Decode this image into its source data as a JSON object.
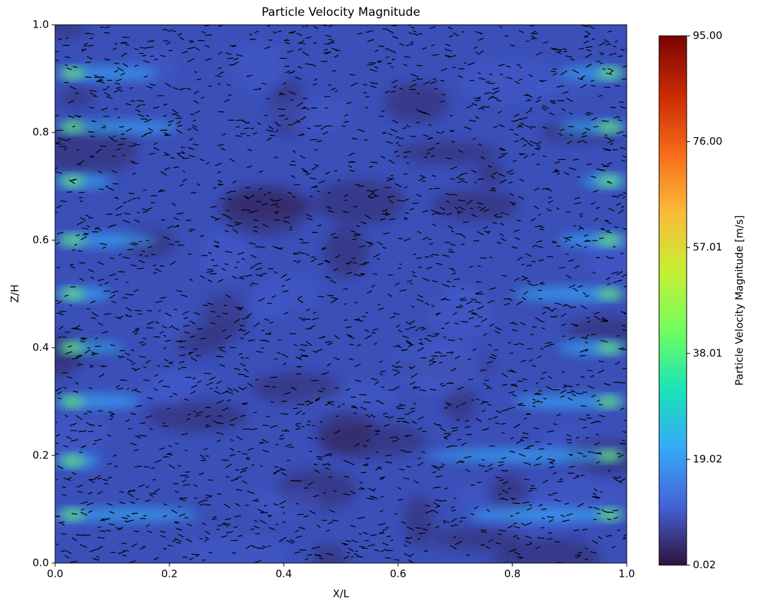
{
  "chart_data": {
    "type": "contour",
    "title": "Particle Velocity Magnitude",
    "xlabel": "X/L",
    "ylabel": "Z/H",
    "xlim": [
      0,
      1
    ],
    "ylim": [
      0,
      1
    ],
    "xticks": [
      {
        "value": 0,
        "label": "0.0"
      },
      0.2,
      0.4,
      0.6,
      0.8,
      {
        "value": 1,
        "label": "1.0"
      }
    ],
    "yticks": [
      {
        "value": 0,
        "label": "0.0"
      },
      0.2,
      0.4,
      0.6,
      0.8,
      {
        "value": 1,
        "label": "1.0"
      }
    ],
    "colorbar": {
      "label": "Particle Velocity Magnitude [m/s]",
      "clim": [
        0.02,
        95
      ],
      "ticks": [
        0.02,
        19.02,
        38.01,
        57.01,
        {
          "value": 76,
          "label": "76.00"
        },
        {
          "value": 95,
          "label": "95.00"
        }
      ],
      "colors": [
        "#30123b",
        "#4662d7",
        "#36aaf9",
        "#1ae4b6",
        "#72fe5e",
        "#c7ef34",
        "#fabb39",
        "#f66b19",
        "#ca2a04",
        "#7a0403"
      ]
    }
  }
}
